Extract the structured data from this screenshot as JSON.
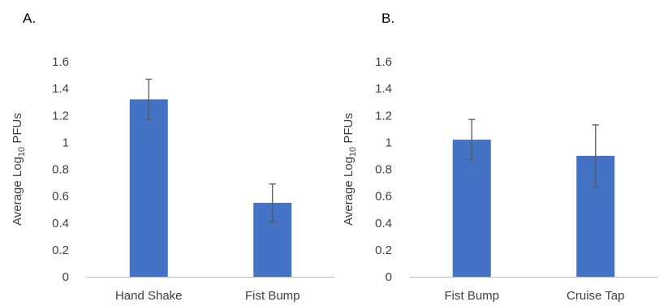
{
  "panels": [
    {
      "label": "A."
    },
    {
      "label": "B."
    }
  ],
  "colors": {
    "bar": "#4472c4",
    "axis": "#bfbfbf",
    "error_bar": "#595959",
    "text": "#404040"
  },
  "chart_data": [
    {
      "type": "bar",
      "title": "",
      "xlabel": "",
      "ylabel": {
        "prefix": "Average Log",
        "subscript": "10",
        "suffix": " PFUs"
      },
      "ylim": [
        0,
        1.6
      ],
      "yticks": [
        "0",
        "0.2",
        "0.4",
        "0.6",
        "0.8",
        "1",
        "1.2",
        "1.4",
        "1.6"
      ],
      "grid": false,
      "categories": [
        "Hand Shake",
        "Fist Bump"
      ],
      "values": [
        1.32,
        0.55
      ],
      "error": [
        0.15,
        0.14
      ]
    },
    {
      "type": "bar",
      "title": "",
      "xlabel": "",
      "ylabel": {
        "prefix": "Average Log",
        "subscript": "10",
        "suffix": " PFUs"
      },
      "ylim": [
        0,
        1.6
      ],
      "yticks": [
        "0",
        "0.2",
        "0.4",
        "0.6",
        "0.8",
        "1",
        "1.2",
        "1.4",
        "1.6"
      ],
      "grid": false,
      "categories": [
        "Fist Bump",
        "Cruise Tap"
      ],
      "values": [
        1.02,
        0.9
      ],
      "error": [
        0.15,
        0.23
      ]
    }
  ]
}
